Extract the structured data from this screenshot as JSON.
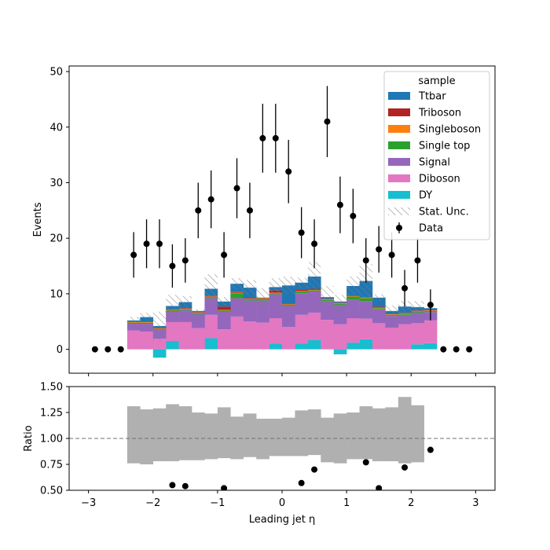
{
  "chart_data": {
    "type": "bar",
    "main": {
      "ylabel": "Events",
      "xlim": [
        -3.3,
        3.3
      ],
      "ylim": [
        -4.3,
        51
      ],
      "yticks": [
        0,
        10,
        20,
        30,
        40,
        50
      ],
      "bin_edges": [
        -2.4,
        -2.2,
        -2.0,
        -1.8,
        -1.6,
        -1.4,
        -1.2,
        -1.0,
        -0.8,
        -0.6,
        -0.4,
        -0.2,
        0.0,
        0.2,
        0.4,
        0.6,
        0.8,
        1.0,
        1.2,
        1.4,
        1.6,
        1.8,
        2.0,
        2.2,
        2.4
      ],
      "stack": [
        {
          "name": "DY",
          "color": "#17becf",
          "values": [
            0,
            0,
            -1.5,
            1.5,
            0,
            0,
            2,
            0,
            0,
            0,
            0,
            1,
            0,
            1,
            1.7,
            0,
            -0.9,
            1.2,
            1.8,
            0,
            0,
            0,
            0.9,
            1.1
          ]
        },
        {
          "name": "Diboson",
          "color": "#e377c2",
          "values": [
            3.4,
            3.2,
            1.9,
            3.4,
            4.9,
            3.8,
            4.2,
            3.6,
            5.9,
            5.0,
            4.8,
            4.6,
            4.0,
            5.2,
            4.9,
            5.3,
            4.5,
            4.4,
            3.7,
            4.7,
            3.9,
            4.5,
            3.8,
            4.1
          ]
        },
        {
          "name": "Signal",
          "color": "#9467bd",
          "values": [
            1.2,
            1.4,
            1.6,
            1.9,
            2.1,
            2.5,
            3.0,
            3.2,
            3.3,
            3.8,
            4.0,
            4.3,
            3.8,
            3.9,
            3.8,
            3.4,
            3.5,
            3.3,
            3.2,
            2.5,
            2.1,
            1.7,
            1.9,
            1.5
          ]
        },
        {
          "name": "Single top",
          "color": "#2ca02c",
          "values": [
            0.2,
            0.2,
            0.2,
            0.2,
            0.2,
            0.2,
            0.2,
            0.2,
            0.9,
            0.2,
            0.3,
            0.2,
            0.2,
            0.3,
            0.2,
            0.2,
            0.2,
            0.6,
            0.5,
            0.2,
            0.2,
            0.2,
            0.2,
            0.2
          ]
        },
        {
          "name": "Singleboson",
          "color": "#ff7f0e",
          "values": [
            0.1,
            0.1,
            0.1,
            0.1,
            0.1,
            0.1,
            0.1,
            0.1,
            0.1,
            0.1,
            0.1,
            0.1,
            0.1,
            0.1,
            0.1,
            0.1,
            0.1,
            0.1,
            0.1,
            0.1,
            0.1,
            0.1,
            0.1,
            0.1
          ]
        },
        {
          "name": "Triboson",
          "color": "#b22222",
          "values": [
            0.1,
            0.1,
            0.1,
            0.1,
            0.1,
            0.1,
            0.1,
            0.6,
            0.1,
            0.1,
            0.1,
            0.4,
            0.1,
            0.3,
            0.2,
            0.1,
            0.1,
            0.1,
            0.1,
            0.2,
            0.1,
            0.1,
            0.1,
            0.1
          ]
        },
        {
          "name": "Ttbar",
          "color": "#1f77b4",
          "values": [
            0.2,
            0.8,
            0.3,
            0.6,
            1.1,
            0.2,
            1.3,
            0.9,
            1.5,
            1.9,
            0,
            0.6,
            3.3,
            1.2,
            2.2,
            0.3,
            0.2,
            1.7,
            2.9,
            1.6,
            0.5,
            1.1,
            0.6,
            0.3
          ]
        }
      ],
      "stat_unc_label": "Stat. Unc.",
      "stat_unc": [
        0.7,
        0.8,
        2.6,
        2.0,
        1.1,
        0.3,
        2.6,
        0.8,
        1.0,
        1.4,
        1.7,
        1.6,
        1.6,
        0.9,
        2.6,
        2.0,
        1.2,
        1.7,
        3.0,
        0.6,
        1.0,
        1.0,
        1.1,
        0.1
      ],
      "data_label": "Data",
      "data": {
        "x": [
          -2.9,
          -2.7,
          -2.5,
          -2.3,
          -2.1,
          -1.9,
          -1.7,
          -1.5,
          -1.3,
          -1.1,
          -0.9,
          -0.7,
          -0.5,
          -0.3,
          -0.1,
          0.1,
          0.3,
          0.5,
          0.7,
          0.9,
          1.1,
          1.3,
          1.5,
          1.7,
          1.9,
          2.1,
          2.3,
          2.5,
          2.7,
          2.9
        ],
        "y": [
          0,
          0,
          0,
          17,
          19,
          19,
          15,
          16,
          25,
          27,
          17,
          29,
          25,
          38,
          38,
          32,
          21,
          19,
          41,
          26,
          24,
          16,
          18,
          17,
          11,
          16,
          8,
          0,
          0,
          0
        ],
        "err": [
          0,
          0,
          0,
          4.1,
          4.4,
          4.4,
          3.9,
          4.0,
          5.0,
          5.2,
          4.1,
          5.4,
          5.0,
          6.2,
          6.2,
          5.7,
          4.6,
          4.4,
          6.4,
          5.1,
          4.9,
          4.0,
          4.2,
          4.1,
          3.3,
          4.0,
          2.8,
          0,
          0,
          0
        ]
      },
      "legend_title": "sample",
      "legend_entries": [
        "Ttbar",
        "Triboson",
        "Singleboson",
        "Single top",
        "Signal",
        "Diboson",
        "DY",
        "Stat. Unc.",
        "Data"
      ],
      "legend_position": "top-right"
    },
    "ratio": {
      "ylabel": "Ratio",
      "xlabel": "Leading jet  η",
      "ylim": [
        0.5,
        1.5
      ],
      "yticks": [
        "0.50",
        "0.75",
        "1.00",
        "1.25",
        "1.50"
      ],
      "reference_line": 1.0,
      "band_color": "#b0b0b0",
      "band_low": [
        0.76,
        0.75,
        0.78,
        0.78,
        0.79,
        0.79,
        0.8,
        0.81,
        0.8,
        0.82,
        0.8,
        0.83,
        0.83,
        0.83,
        0.84,
        0.77,
        0.76,
        0.8,
        0.8,
        0.78,
        0.78,
        0.76,
        0.77,
        0.78
      ],
      "band_high": [
        1.31,
        1.28,
        1.29,
        1.33,
        1.31,
        1.25,
        1.24,
        1.3,
        1.21,
        1.24,
        1.19,
        1.19,
        1.2,
        1.27,
        1.28,
        1.2,
        1.24,
        1.25,
        1.31,
        1.29,
        1.3,
        1.4,
        1.32,
        0
      ],
      "points": {
        "x": [
          -1.7,
          -1.5,
          -0.9,
          0.3,
          0.5,
          1.3,
          1.5,
          1.9,
          2.3
        ],
        "y": [
          0.55,
          0.54,
          0.52,
          0.57,
          0.7,
          0.77,
          0.52,
          0.72,
          0.89
        ]
      }
    },
    "xticks": [
      -3,
      -2,
      -1,
      0,
      1,
      2,
      3
    ]
  }
}
